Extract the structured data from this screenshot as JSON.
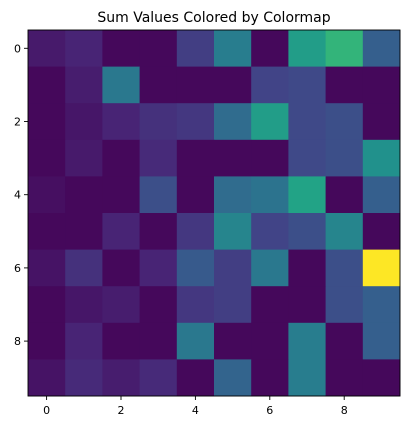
{
  "chart_data": {
    "type": "heatmap",
    "title": "Sum Values Colored by Colormap",
    "xlabel": "",
    "ylabel": "",
    "colormap": "viridis",
    "x_ticks": [
      0,
      2,
      4,
      6,
      8
    ],
    "y_ticks": [
      0,
      2,
      4,
      6,
      8
    ],
    "xlim": [
      -0.5,
      9.5
    ],
    "ylim": [
      9.5,
      -0.5
    ],
    "grid": false,
    "value_range": [
      0,
      1
    ],
    "matrix": [
      [
        0.07,
        0.1,
        0.02,
        0.02,
        0.18,
        0.42,
        0.02,
        0.55,
        0.65,
        0.3
      ],
      [
        0.02,
        0.08,
        0.4,
        0.02,
        0.02,
        0.02,
        0.2,
        0.22,
        0.02,
        0.02
      ],
      [
        0.02,
        0.06,
        0.1,
        0.14,
        0.16,
        0.35,
        0.55,
        0.22,
        0.24,
        0.02
      ],
      [
        0.02,
        0.07,
        0.02,
        0.12,
        0.02,
        0.02,
        0.02,
        0.22,
        0.24,
        0.5
      ],
      [
        0.04,
        0.02,
        0.02,
        0.24,
        0.02,
        0.35,
        0.38,
        0.58,
        0.02,
        0.3
      ],
      [
        0.02,
        0.02,
        0.1,
        0.02,
        0.16,
        0.45,
        0.2,
        0.24,
        0.45,
        0.02
      ],
      [
        0.05,
        0.14,
        0.02,
        0.1,
        0.28,
        0.18,
        0.4,
        0.02,
        0.24,
        1.0
      ],
      [
        0.02,
        0.06,
        0.08,
        0.02,
        0.16,
        0.18,
        0.02,
        0.02,
        0.24,
        0.3
      ],
      [
        0.02,
        0.1,
        0.02,
        0.02,
        0.4,
        0.02,
        0.02,
        0.42,
        0.02,
        0.3
      ],
      [
        0.05,
        0.12,
        0.08,
        0.12,
        0.02,
        0.32,
        0.02,
        0.42,
        0.02,
        0.02
      ]
    ]
  }
}
